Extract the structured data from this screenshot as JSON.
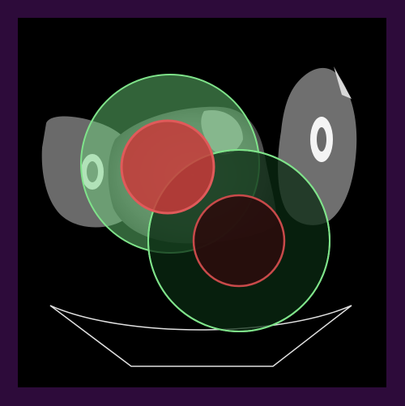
{
  "image": {
    "modality": "CT axial slice",
    "frame_color": "#2d0b3a",
    "background_color": "#000000"
  },
  "overlays": {
    "outer_ring_color": "#6fdc7f",
    "inner_target_color": "#d03a3a",
    "ring_edge_color": "#7fe38a"
  }
}
